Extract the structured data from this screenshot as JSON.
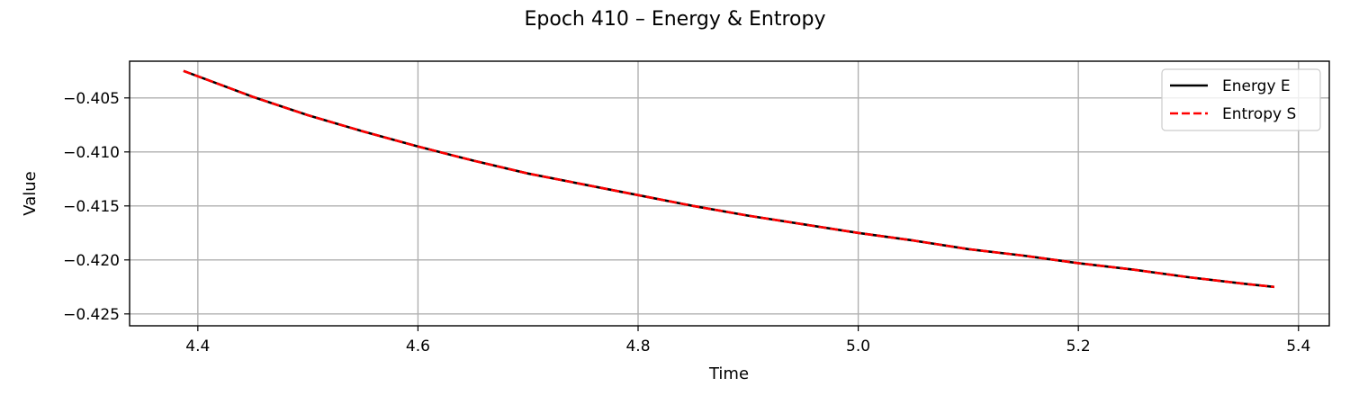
{
  "chart_data": {
    "type": "line",
    "title": "Epoch 410 – Energy & Entropy",
    "xlabel": "Time",
    "ylabel": "Value",
    "xlim": [
      4.338,
      5.428
    ],
    "ylim": [
      -0.4261,
      -0.4016
    ],
    "xticks": [
      4.4,
      4.6,
      4.8,
      5.0,
      5.2,
      5.4
    ],
    "xtick_labels": [
      "4.4",
      "4.6",
      "4.8",
      "5.0",
      "5.2",
      "5.4"
    ],
    "yticks": [
      -0.405,
      -0.41,
      -0.415,
      -0.42,
      -0.425
    ],
    "ytick_labels": [
      "−0.405",
      "−0.410",
      "−0.415",
      "−0.420",
      "−0.425"
    ],
    "grid": true,
    "legend_position": "top-right",
    "series": [
      {
        "name": "Energy E",
        "color": "#000000",
        "style": "solid",
        "x": [
          4.387,
          4.45,
          4.5,
          4.55,
          4.6,
          4.65,
          4.7,
          4.75,
          4.8,
          4.85,
          4.9,
          4.95,
          5.0,
          5.05,
          5.1,
          5.15,
          5.2,
          5.25,
          5.3,
          5.35,
          5.378
        ],
        "y": [
          -0.4025,
          -0.4049,
          -0.4066,
          -0.4081,
          -0.4095,
          -0.4108,
          -0.412,
          -0.413,
          -0.414,
          -0.415,
          -0.4159,
          -0.4167,
          -0.4175,
          -0.4182,
          -0.419,
          -0.4196,
          -0.4203,
          -0.4209,
          -0.4216,
          -0.4222,
          -0.4225
        ]
      },
      {
        "name": "Entropy S",
        "color": "#ff0000",
        "style": "dashed",
        "x": [
          4.387,
          4.45,
          4.5,
          4.55,
          4.6,
          4.65,
          4.7,
          4.75,
          4.8,
          4.85,
          4.9,
          4.95,
          5.0,
          5.05,
          5.1,
          5.15,
          5.2,
          5.25,
          5.3,
          5.35,
          5.378
        ],
        "y": [
          -0.4025,
          -0.4049,
          -0.4066,
          -0.4081,
          -0.4095,
          -0.4108,
          -0.412,
          -0.413,
          -0.414,
          -0.415,
          -0.4159,
          -0.4167,
          -0.4175,
          -0.4182,
          -0.419,
          -0.4196,
          -0.4203,
          -0.4209,
          -0.4216,
          -0.4222,
          -0.4225
        ]
      }
    ]
  }
}
